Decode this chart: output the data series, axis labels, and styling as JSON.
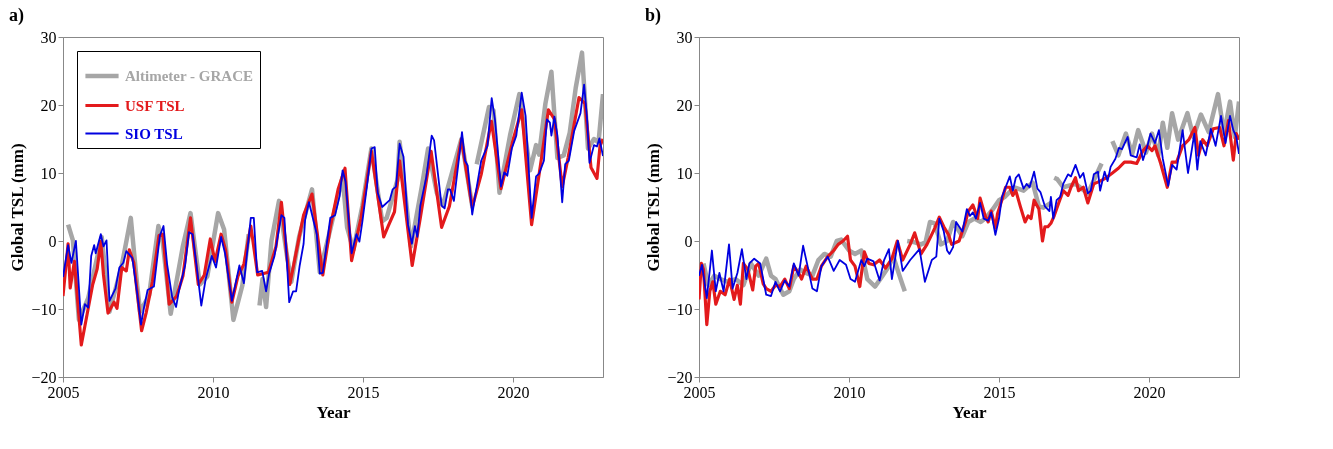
{
  "chart_data": [
    {
      "type": "line",
      "title": "a)",
      "xlabel": "Year",
      "ylabel": "Global TSL (mm)",
      "xlim": [
        2005,
        2023
      ],
      "xticks": [
        2005,
        2010,
        2015,
        2020
      ],
      "ylim": [
        -20,
        30
      ],
      "yticks": [
        -20,
        -10,
        0,
        10,
        20,
        30
      ],
      "legend": "top left",
      "series": [
        {
          "name": "Altimeter - GRACE",
          "color": "#a6a6a6",
          "x": [
            2005.17,
            2005.33,
            2005.53,
            2005.84,
            2006.14,
            2006.29,
            2006.55,
            2006.96,
            2007.26,
            2007.47,
            2007.57,
            2007.87,
            2008.18,
            2008.33,
            2008.59,
            2008.99,
            2009.25,
            2009.56,
            2009.81,
            2010.17,
            2010.37,
            2010.68,
            2010.98,
            2011.19,
            2011.35,
            2011.55,
            2011.65,
            2011.77,
            2011.95,
            2012.2,
            2012.46,
            2012.61,
            2012.87,
            2013.3,
            2013.56,
            2013.87,
            2014.32,
            2014.47,
            2014.68,
            2014.98,
            2015.28,
            2015.64,
            2015.79,
            2016.15,
            2016.22,
            2016.6,
            2016.96,
            2017.17,
            2017.46,
            2017.66,
            2018.28,
            2018.64,
            2018.7,
            2018.79,
            2019.2,
            2019.35,
            2019.55,
            2019.9,
            2020.21,
            2020.57,
            2020.77,
            2020.87,
            2021.08,
            2021.28,
            2021.48,
            2021.69,
            2021.89,
            2022.09,
            2022.3,
            2022.5,
            2022.7,
            2022.85,
            2023.0
          ],
          "values": [
            2.4,
            0.1,
            -11.6,
            -8.4,
            -2.4,
            0.6,
            -10.4,
            -3.6,
            3.4,
            -6.4,
            -10.4,
            -8.0,
            2.2,
            -0.4,
            -10.7,
            -0.9,
            4.1,
            -6.4,
            -5.2,
            4.1,
            1.7,
            -11.6,
            -6.5,
            1.0,
            null,
            -9.5,
            -5.6,
            -9.7,
            0.1,
            5.9,
            -2.0,
            -6.0,
            0.6,
            7.6,
            -4.6,
            1.0,
            9.4,
            2.0,
            -1.3,
            5.2,
            13.6,
            2.9,
            3.4,
            9.0,
            14.6,
            -0.8,
            8.0,
            13.6,
            7.1,
            5.2,
            15.0,
            5.2,
            null,
            11.3,
            19.7,
            19.2,
            7.1,
            15.5,
            21.6,
            10.4,
            14.1,
            12.7,
            20.2,
            24.9,
            12.2,
            12.6,
            15.9,
            22.5,
            27.7,
            13.6,
            15.0,
            14.5,
            21.6
          ]
        },
        {
          "name": "USF TSL",
          "color": "#e31a1c",
          "x": [
            2005.0,
            2005.17,
            2005.24,
            2005.38,
            2005.61,
            2005.73,
            2005.99,
            2006.14,
            2006.26,
            2006.35,
            2006.5,
            2006.7,
            2006.8,
            2006.96,
            2007.11,
            2007.21,
            2007.36,
            2007.62,
            2007.77,
            2007.98,
            2008.2,
            2008.33,
            2008.54,
            2008.79,
            2009.0,
            2009.25,
            2009.51,
            2009.71,
            2009.91,
            2010.07,
            2010.27,
            2010.42,
            2010.63,
            2010.83,
            2011.03,
            2011.26,
            2011.49,
            2011.85,
            2012.1,
            2012.28,
            2012.56,
            2012.82,
            2013.02,
            2013.3,
            2013.66,
            2013.91,
            2014.17,
            2014.4,
            2014.62,
            2014.93,
            2015.28,
            2015.69,
            2015.84,
            2016.05,
            2016.22,
            2016.64,
            2016.91,
            2017.27,
            2017.62,
            2017.88,
            2018.28,
            2018.64,
            2018.94,
            2019.28,
            2019.6,
            2020.01,
            2020.29,
            2020.62,
            2020.92,
            2021.18,
            2021.38,
            2021.64,
            2021.84,
            2022.2,
            2022.4,
            2022.6,
            2022.8,
            2022.9,
            2023.0
          ],
          "values": [
            -8.1,
            -0.4,
            -6.9,
            -3.0,
            -15.3,
            -12.5,
            -6.4,
            -4.1,
            -0.1,
            -5.0,
            -10.6,
            -9.0,
            -9.9,
            -3.9,
            -4.4,
            -1.3,
            -3.2,
            -13.2,
            -10.6,
            -6.0,
            0.8,
            1.0,
            -9.3,
            -8.1,
            -5.1,
            3.4,
            -6.4,
            -5.0,
            0.3,
            -3.0,
            1.0,
            -1.3,
            -9.0,
            -5.2,
            -3.4,
            2.2,
            -5.0,
            -4.6,
            -0.8,
            5.7,
            -6.4,
            -0.6,
            3.8,
            6.9,
            -5.0,
            2.0,
            7.6,
            10.7,
            -2.9,
            3.3,
            13.2,
            0.6,
            2.2,
            4.3,
            11.8,
            -3.6,
            3.4,
            13.2,
            2.0,
            5.1,
            15.0,
            4.9,
            9.8,
            17.6,
            7.7,
            15.0,
            19.3,
            2.4,
            11.3,
            19.3,
            17.9,
            8.0,
            12.3,
            21.1,
            20.2,
            10.8,
            9.2,
            14.0,
            15.0
          ]
        },
        {
          "name": "SIO TSL",
          "color": "#0000e0",
          "x": [
            2005.0,
            2005.17,
            2005.28,
            2005.43,
            2005.61,
            2005.73,
            2005.84,
            2005.94,
            2006.04,
            2006.09,
            2006.26,
            2006.35,
            2006.45,
            2006.55,
            2006.75,
            2006.88,
            2007.01,
            2007.11,
            2007.31,
            2007.47,
            2007.6,
            2007.7,
            2007.82,
            2008.03,
            2008.23,
            2008.35,
            2008.47,
            2008.64,
            2008.77,
            2008.87,
            2009.07,
            2009.2,
            2009.32,
            2009.45,
            2009.61,
            2009.76,
            2009.96,
            2010.1,
            2010.27,
            2010.4,
            2010.63,
            2010.88,
            2011.03,
            2011.26,
            2011.36,
            2011.47,
            2011.64,
            2011.77,
            2011.87,
            2012.05,
            2012.28,
            2012.38,
            2012.54,
            2012.67,
            2012.77,
            2012.89,
            2013.02,
            2013.07,
            2013.2,
            2013.46,
            2013.56,
            2013.66,
            2013.91,
            2014.07,
            2014.22,
            2014.32,
            2014.42,
            2014.62,
            2014.78,
            2014.88,
            2014.98,
            2015.13,
            2015.28,
            2015.39,
            2015.49,
            2015.64,
            2015.89,
            2015.99,
            2016.1,
            2016.22,
            2016.35,
            2016.5,
            2016.63,
            2016.73,
            2016.81,
            2016.91,
            2017.11,
            2017.29,
            2017.37,
            2017.62,
            2017.72,
            2017.83,
            2017.9,
            2018.03,
            2018.18,
            2018.3,
            2018.4,
            2018.49,
            2018.64,
            2018.74,
            2018.94,
            2019.15,
            2019.29,
            2019.4,
            2019.6,
            2019.71,
            2019.81,
            2019.96,
            2020.11,
            2020.29,
            2020.42,
            2020.62,
            2020.77,
            2020.87,
            2021.03,
            2021.13,
            2021.23,
            2021.28,
            2021.38,
            2021.48,
            2021.64,
            2021.74,
            2021.86,
            2022.04,
            2022.25,
            2022.37,
            2022.47,
            2022.55,
            2022.7,
            2022.8,
            2022.88,
            2023.0
          ],
          "values": [
            -5.3,
            -0.6,
            -3.2,
            0.0,
            -12.3,
            -9.3,
            -9.8,
            -2.2,
            -0.6,
            -1.8,
            1.0,
            -0.8,
            0.1,
            -8.8,
            -7.0,
            -3.9,
            -3.2,
            -1.5,
            -2.5,
            -7.6,
            -12.3,
            -9.8,
            -7.2,
            -6.7,
            0.8,
            2.2,
            -3.4,
            -8.3,
            -9.7,
            -7.2,
            -3.6,
            1.3,
            1.0,
            -3.6,
            -9.5,
            -5.5,
            -2.2,
            -3.9,
            0.6,
            -1.8,
            -8.8,
            -3.6,
            -6.2,
            3.4,
            3.4,
            -4.6,
            -4.4,
            -7.4,
            -4.8,
            -2.2,
            3.8,
            3.4,
            -9.0,
            -7.4,
            -7.4,
            -3.6,
            -0.4,
            3.1,
            5.7,
            1.0,
            -4.8,
            -4.7,
            3.4,
            3.8,
            6.6,
            10.4,
            8.7,
            -1.8,
            1.0,
            -0.1,
            2.9,
            8.0,
            13.6,
            13.8,
            7.1,
            5.0,
            6.0,
            7.6,
            8.0,
            14.3,
            12.4,
            2.4,
            -0.4,
            2.2,
            0.6,
            5.2,
            9.4,
            15.5,
            14.8,
            5.2,
            4.8,
            7.6,
            7.6,
            5.9,
            11.4,
            16.0,
            11.8,
            11.1,
            3.9,
            6.6,
            11.8,
            14.0,
            21.0,
            17.8,
            8.0,
            10.1,
            9.6,
            13.6,
            15.5,
            21.8,
            18.4,
            3.4,
            9.5,
            9.9,
            11.8,
            17.9,
            17.4,
            15.5,
            18.3,
            15.5,
            5.7,
            11.3,
            11.8,
            16.2,
            18.8,
            23.0,
            17.9,
            11.5,
            14.1,
            13.9,
            15.1,
            12.5
          ]
        }
      ]
    },
    {
      "type": "line",
      "title": "b)",
      "xlabel": "Year",
      "ylabel": "Global TSL (mm)",
      "xlim": [
        2005,
        2023
      ],
      "xticks": [
        2005,
        2010,
        2015,
        2020
      ],
      "ylim": [
        -20,
        30
      ],
      "yticks": [
        -20,
        -10,
        0,
        10,
        20,
        30
      ],
      "legend": "top left",
      "series": [
        {
          "name": "Altimeter - GRACE",
          "color": "#a6a6a6",
          "x": [
            2005.15,
            2005.31,
            2005.51,
            2005.71,
            2005.97,
            2006.22,
            2006.48,
            2006.73,
            2006.99,
            2007.24,
            2007.4,
            2007.55,
            2007.81,
            2008.01,
            2008.16,
            2008.37,
            2008.57,
            2008.78,
            2008.98,
            2009.18,
            2009.39,
            2009.59,
            2009.74,
            2010.0,
            2010.2,
            2010.41,
            2010.61,
            2010.87,
            2011.12,
            2011.33,
            2011.48,
            2011.63,
            2011.79,
            2011.86,
            2011.9,
            2011.94,
            2012.19,
            2012.4,
            2012.55,
            2012.7,
            2012.86,
            2013.06,
            2013.27,
            2013.47,
            2013.78,
            2013.98,
            2014.18,
            2014.39,
            2014.54,
            2014.8,
            2015.0,
            2015.2,
            2015.51,
            2015.82,
            2016.12,
            2016.33,
            2016.48,
            2016.73,
            2016.8,
            2016.84,
            2016.94,
            2017.14,
            2017.55,
            2017.96,
            2018.42,
            2018.6,
            2018.78,
            2018.98,
            2019.23,
            2019.44,
            2019.64,
            2019.9,
            2020.1,
            2020.31,
            2020.46,
            2020.61,
            2020.77,
            2020.97,
            2021.28,
            2021.48,
            2021.73,
            2021.99,
            2022.3,
            2022.5,
            2022.7,
            2022.86,
            2023.0
          ],
          "values": [
            -3.3,
            -6.5,
            -5.1,
            -5.6,
            -6.0,
            -5.6,
            -6.5,
            -3.3,
            -5.1,
            -2.6,
            -5.1,
            -5.6,
            -7.9,
            -7.4,
            -5.6,
            -4.2,
            -4.7,
            -5.1,
            -2.8,
            -1.9,
            -2.3,
            0.0,
            0.2,
            -1.4,
            -1.9,
            -1.4,
            -5.6,
            -6.7,
            -5.1,
            -3.7,
            -2.3,
            -4.4,
            -6.5,
            -7.4,
            null,
            0.0,
            -0.2,
            -0.5,
            -0.2,
            2.8,
            2.6,
            -0.5,
            0.0,
            2.8,
            0.7,
            2.8,
            3.3,
            2.8,
            3.3,
            4.7,
            6.0,
            6.5,
            7.9,
            7.4,
            8.6,
            5.1,
            4.9,
            5.6,
            null,
            9.3,
            9.1,
            7.9,
            8.4,
            7.0,
            11.4,
            null,
            14.7,
            12.6,
            15.8,
            12.8,
            16.3,
            13.0,
            15.8,
            12.6,
            17.4,
            13.7,
            18.8,
            14.9,
            18.8,
            15.3,
            18.6,
            16.0,
            21.6,
            15.8,
            20.5,
            15.3,
            20.5
          ]
        },
        {
          "name": "USF TSL",
          "color": "#e31a1c",
          "x": [
            2005.0,
            2005.08,
            2005.15,
            2005.26,
            2005.36,
            2005.46,
            2005.56,
            2005.71,
            2005.87,
            2006.02,
            2006.17,
            2006.28,
            2006.38,
            2006.48,
            2006.63,
            2006.79,
            2006.89,
            2006.99,
            2007.14,
            2007.24,
            2007.4,
            2007.55,
            2007.7,
            2007.86,
            2008.01,
            2008.16,
            2008.32,
            2008.42,
            2008.57,
            2008.78,
            2008.93,
            2009.08,
            2009.29,
            2009.49,
            2009.64,
            2009.8,
            2009.95,
            2010.05,
            2010.2,
            2010.36,
            2010.51,
            2010.66,
            2010.82,
            2011.02,
            2011.22,
            2011.43,
            2011.61,
            2011.79,
            2012.04,
            2012.19,
            2012.4,
            2012.6,
            2012.86,
            2013.01,
            2013.16,
            2013.32,
            2013.42,
            2013.67,
            2013.88,
            2013.98,
            2014.13,
            2014.29,
            2014.37,
            2014.54,
            2014.64,
            2014.74,
            2014.88,
            2014.95,
            2015.08,
            2015.22,
            2015.36,
            2015.46,
            2015.56,
            2015.71,
            2015.87,
            2015.97,
            2016.07,
            2016.17,
            2016.33,
            2016.45,
            2016.53,
            2016.63,
            2016.73,
            2016.84,
            2016.99,
            2017.14,
            2017.3,
            2017.4,
            2017.55,
            2017.65,
            2017.81,
            2017.96,
            2018.16,
            2018.37,
            2018.57,
            2018.78,
            2018.98,
            2019.18,
            2019.39,
            2019.59,
            2019.8,
            2019.95,
            2020.1,
            2020.2,
            2020.39,
            2020.61,
            2020.77,
            2020.92,
            2021.12,
            2021.33,
            2021.53,
            2021.65,
            2021.79,
            2021.94,
            2022.14,
            2022.35,
            2022.5,
            2022.65,
            2022.81,
            2022.91,
            2023.0
          ],
          "values": [
            -8.6,
            -3.3,
            -4.2,
            -12.3,
            -7.4,
            -6.0,
            -9.3,
            -7.4,
            -7.9,
            -5.6,
            -8.6,
            -6.5,
            -9.3,
            -3.3,
            -4.2,
            -7.2,
            -3.7,
            -3.3,
            -6.3,
            -7.0,
            -7.4,
            -6.5,
            -6.7,
            -5.6,
            -7.0,
            -3.7,
            -4.7,
            -5.6,
            -3.7,
            -5.6,
            -5.6,
            -3.7,
            -2.3,
            -1.4,
            -0.5,
            0.0,
            0.7,
            -2.8,
            -3.7,
            -6.7,
            -1.6,
            -3.3,
            -3.5,
            -2.8,
            -4.0,
            -2.6,
            0.0,
            -2.8,
            -0.5,
            1.2,
            -1.9,
            -0.5,
            1.9,
            3.5,
            2.1,
            0.9,
            -0.5,
            0.0,
            2.8,
            4.4,
            5.3,
            3.3,
            6.3,
            3.7,
            2.8,
            4.4,
            1.9,
            4.0,
            5.8,
            7.9,
            7.9,
            6.7,
            7.4,
            5.1,
            2.8,
            3.7,
            3.3,
            6.0,
            4.7,
            0.0,
            2.1,
            2.1,
            2.6,
            3.7,
            5.6,
            7.4,
            6.7,
            7.9,
            9.3,
            7.4,
            7.9,
            5.6,
            8.4,
            8.8,
            9.3,
            10.0,
            10.7,
            11.6,
            11.6,
            11.4,
            13.3,
            14.0,
            13.3,
            14.0,
            11.4,
            7.9,
            11.6,
            11.6,
            14.0,
            14.9,
            16.7,
            12.6,
            14.9,
            14.0,
            16.5,
            16.7,
            14.0,
            17.7,
            11.9,
            15.8,
            14.9
          ]
        },
        {
          "name": "SIO TSL",
          "color": "#0000e0",
          "x": [
            2005.0,
            2005.1,
            2005.26,
            2005.43,
            2005.56,
            2005.68,
            2005.82,
            2006.0,
            2006.12,
            2006.28,
            2006.43,
            2006.58,
            2006.68,
            2006.84,
            2007.04,
            2007.24,
            2007.4,
            2007.55,
            2007.7,
            2007.86,
            2008.01,
            2008.16,
            2008.32,
            2008.47,
            2008.62,
            2008.78,
            2008.93,
            2009.08,
            2009.29,
            2009.49,
            2009.69,
            2009.9,
            2010.05,
            2010.2,
            2010.41,
            2010.51,
            2010.61,
            2010.82,
            2011.02,
            2011.17,
            2011.33,
            2011.43,
            2011.63,
            2011.79,
            2012.04,
            2012.35,
            2012.53,
            2012.76,
            2012.91,
            2013.01,
            2013.16,
            2013.27,
            2013.35,
            2013.47,
            2013.57,
            2013.78,
            2013.93,
            2014.03,
            2014.13,
            2014.23,
            2014.37,
            2014.49,
            2014.64,
            2014.74,
            2014.88,
            2015.0,
            2015.1,
            2015.22,
            2015.36,
            2015.46,
            2015.56,
            2015.66,
            2015.82,
            2015.92,
            2016.02,
            2016.17,
            2016.28,
            2016.38,
            2016.53,
            2016.68,
            2016.73,
            2016.81,
            2016.92,
            2017.04,
            2017.14,
            2017.3,
            2017.4,
            2017.55,
            2017.7,
            2017.81,
            2017.96,
            2018.06,
            2018.16,
            2018.3,
            2018.37,
            2018.52,
            2018.62,
            2018.72,
            2018.88,
            2019.0,
            2019.1,
            2019.29,
            2019.39,
            2019.59,
            2019.69,
            2019.8,
            2019.95,
            2020.05,
            2020.2,
            2020.33,
            2020.46,
            2020.64,
            2020.77,
            2020.92,
            2021.12,
            2021.3,
            2021.43,
            2021.51,
            2021.61,
            2021.71,
            2021.89,
            2022.06,
            2022.22,
            2022.4,
            2022.55,
            2022.7,
            2022.81,
            2022.91,
            2023.0
          ],
          "values": [
            -5.1,
            -3.5,
            -8.4,
            -1.4,
            -7.4,
            -4.7,
            -7.4,
            -0.5,
            -7.0,
            -4.7,
            -1.2,
            -5.6,
            -3.3,
            -2.6,
            -3.3,
            -7.9,
            -8.1,
            -6.0,
            -7.4,
            -5.8,
            -6.7,
            -3.3,
            -5.1,
            -0.7,
            -3.7,
            -7.0,
            -7.4,
            -3.7,
            -2.3,
            -4.4,
            -2.8,
            -3.5,
            -5.6,
            -6.0,
            -2.8,
            -3.7,
            -2.6,
            -3.0,
            -5.8,
            -2.8,
            -1.2,
            -5.6,
            0.0,
            -4.4,
            -2.8,
            -1.2,
            -6.0,
            -2.8,
            -2.3,
            3.3,
            1.4,
            -1.4,
            -1.9,
            -0.9,
            2.8,
            1.4,
            4.7,
            3.7,
            4.2,
            3.3,
            5.6,
            3.3,
            3.0,
            4.2,
            0.9,
            3.3,
            6.5,
            7.9,
            9.5,
            7.4,
            9.3,
            9.8,
            7.7,
            8.4,
            7.9,
            10.2,
            7.7,
            7.2,
            5.1,
            4.4,
            6.5,
            3.3,
            6.0,
            6.5,
            8.4,
            9.8,
            9.5,
            11.2,
            9.3,
            10.0,
            7.0,
            7.4,
            9.8,
            10.2,
            7.4,
            10.2,
            8.8,
            10.9,
            12.1,
            13.7,
            13.5,
            15.3,
            12.6,
            12.3,
            14.2,
            11.9,
            14.0,
            15.8,
            14.4,
            16.3,
            12.1,
            8.1,
            11.2,
            10.5,
            16.3,
            10.0,
            13.5,
            15.8,
            10.5,
            14.7,
            12.6,
            16.5,
            14.0,
            18.4,
            14.4,
            18.4,
            16.3,
            15.3,
            12.8
          ]
        }
      ]
    }
  ]
}
